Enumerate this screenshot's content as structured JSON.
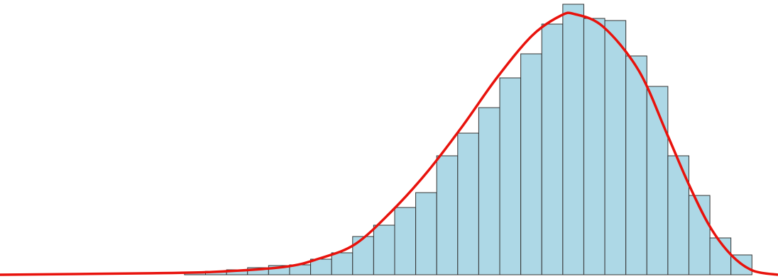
{
  "chart_data": {
    "type": "histogram",
    "bins": [
      0,
      1,
      2,
      3,
      4,
      5,
      6,
      7,
      8,
      9,
      10,
      11,
      12,
      13,
      14,
      15,
      16,
      17,
      18,
      19,
      20,
      21,
      22,
      23,
      24,
      25,
      26,
      27
    ],
    "values": [
      3,
      5,
      7,
      10,
      13,
      14,
      22,
      31,
      54,
      70,
      95,
      116,
      168,
      200,
      236,
      278,
      312,
      354,
      382,
      362,
      359,
      309,
      266,
      168,
      112,
      52,
      28
    ],
    "color": "#add8e6",
    "edgecolor": "#333333",
    "xlim": [
      -8.78,
      28.24
    ],
    "ylim": [
      0,
      388
    ],
    "curve": {
      "color": "#e8120c",
      "x": [
        -8.78,
        -2.03,
        1.35,
        4.73,
        6.42,
        8.11,
        9.8,
        11.49,
        13.18,
        14.86,
        16.55,
        17.91,
        18.58,
        19.93,
        21.62,
        22.97,
        23.99,
        25.0,
        26.01,
        27.03,
        28.24
      ],
      "values": [
        0,
        2,
        4,
        11,
        23,
        43,
        88,
        143,
        208,
        278,
        338,
        366,
        368,
        350,
        288,
        198,
        128,
        68,
        28,
        6,
        0
      ]
    }
  }
}
